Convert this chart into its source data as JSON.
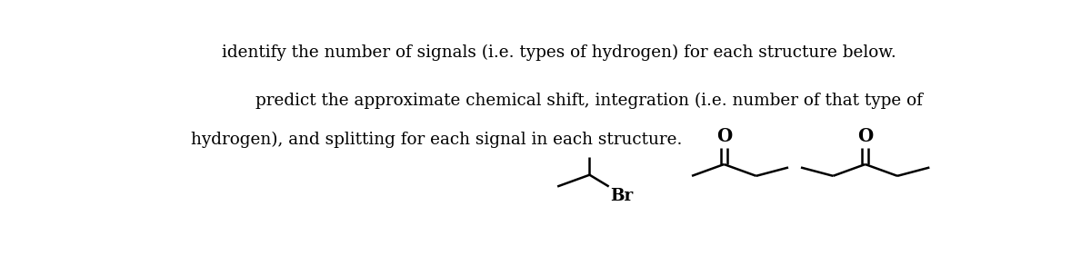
{
  "text_line1": "identify the number of signals (i.e. types of hydrogen) for each structure below.",
  "text_line2": "predict the approximate chemical shift, integration (i.e. number of that type of",
  "text_line3": "hydrogen), and splitting for each signal in each structure.",
  "bg_color": "#ffffff",
  "text_color": "#000000",
  "text_fontsize": 13.2,
  "line_color": "#000000",
  "line_width": 1.8,
  "br_label": "Br",
  "o_label1": "O",
  "o_label2": "O",
  "fig_width": 12.0,
  "fig_height": 3.03,
  "dpi": 100
}
